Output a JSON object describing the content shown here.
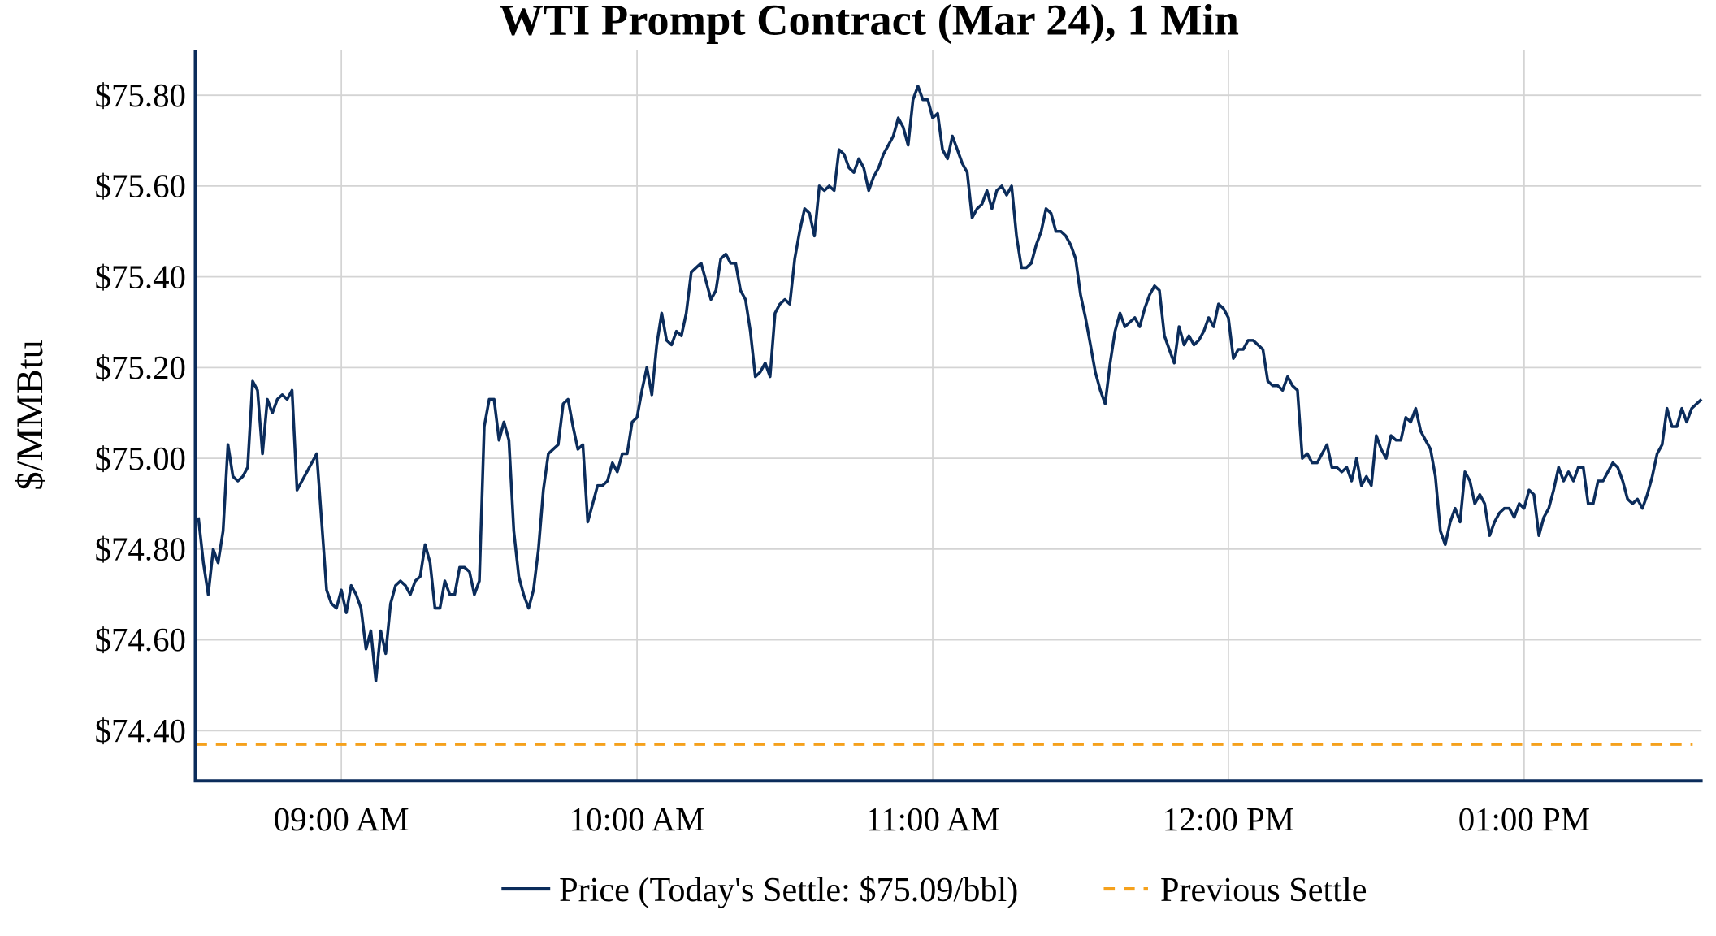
{
  "chart_data": {
    "type": "line",
    "title": "WTI Prompt Contract (Mar 24), 1 Min",
    "xlabel": "",
    "ylabel": "$/MMBtu",
    "x_units": "minutes relative to 09:00 AM",
    "xlim": [
      -29.5,
      276
    ],
    "ylim": [
      74.288,
      75.9
    ],
    "grid": true,
    "legend_placement": "bottom-center",
    "x_ticks": [
      {
        "value": 0,
        "label": "09:00 AM"
      },
      {
        "value": 60,
        "label": "10:00 AM"
      },
      {
        "value": 120,
        "label": "11:00 AM"
      },
      {
        "value": 180,
        "label": "12:00 PM"
      },
      {
        "value": 240,
        "label": "01:00 PM"
      }
    ],
    "y_ticks": [
      {
        "value": 74.4,
        "label": "$74.40"
      },
      {
        "value": 74.6,
        "label": "$74.60"
      },
      {
        "value": 74.8,
        "label": "$74.80"
      },
      {
        "value": 75.0,
        "label": "$75.00"
      },
      {
        "value": 75.2,
        "label": "$75.20"
      },
      {
        "value": 75.4,
        "label": "$75.40"
      },
      {
        "value": 75.6,
        "label": "$75.60"
      },
      {
        "value": 75.8,
        "label": "$75.80"
      }
    ],
    "series": [
      {
        "name": "Price (Today's Settle: $75.09/bbl)",
        "color": "#0b2c5b",
        "style": "solid",
        "segments": [
          {
            "x": [
              -29,
              -28,
              -27,
              -26,
              -25,
              -24,
              -23,
              -22,
              -21,
              -20,
              -19,
              -18,
              -17,
              -16,
              -15,
              -14,
              -13,
              -12,
              -11,
              -10,
              -9,
              -5,
              -3,
              -2,
              -1
            ],
            "y": [
              74.87,
              74.77,
              74.7,
              74.8,
              74.77,
              74.84,
              75.03,
              74.96,
              74.95,
              74.96,
              74.98,
              75.17,
              75.15,
              75.01,
              75.13,
              75.1,
              75.13,
              75.14,
              75.13,
              75.15,
              74.93,
              75.01,
              74.71,
              74.68,
              74.67
            ]
          },
          {
            "x_start": 0,
            "x_step": 1,
            "y": [
              74.71,
              74.66,
              74.72,
              74.7,
              74.67,
              74.58,
              74.62,
              74.51,
              74.62,
              74.57,
              74.68,
              74.72,
              74.73,
              74.72,
              74.7,
              74.73,
              74.74,
              74.81,
              74.77,
              74.67,
              74.67,
              74.73,
              74.7,
              74.7,
              74.76,
              74.76,
              74.75,
              74.7,
              74.73,
              75.07,
              75.13,
              75.13,
              75.04,
              75.08,
              75.04,
              74.84,
              74.74,
              74.7,
              74.67,
              74.71,
              74.8,
              74.93,
              75.01,
              75.02,
              75.03,
              75.12,
              75.13,
              75.07,
              75.02,
              75.03,
              74.86,
              74.9,
              74.94,
              74.94,
              74.95,
              74.99,
              74.97,
              75.01,
              75.01,
              75.08,
              75.09,
              75.15,
              75.2,
              75.14,
              75.25,
              75.32,
              75.26,
              75.25,
              75.28,
              75.27,
              75.32,
              75.41,
              75.42,
              75.43,
              75.39,
              75.35,
              75.37,
              75.44,
              75.45,
              75.43,
              75.43,
              75.37,
              75.35,
              75.28,
              75.18,
              75.19,
              75.21,
              75.18,
              75.32,
              75.34,
              75.35,
              75.34,
              75.44,
              75.5,
              75.55,
              75.54,
              75.49,
              75.6,
              75.59,
              75.6,
              75.59,
              75.68,
              75.67,
              75.64,
              75.63,
              75.66,
              75.64,
              75.59,
              75.62,
              75.64,
              75.67,
              75.69,
              75.71,
              75.75,
              75.73,
              75.69,
              75.79,
              75.82,
              75.79,
              75.79,
              75.75,
              75.76,
              75.68,
              75.66,
              75.71,
              75.68,
              75.65,
              75.63,
              75.53,
              75.55,
              75.56,
              75.59,
              75.55,
              75.59,
              75.6,
              75.58,
              75.6,
              75.49,
              75.42,
              75.42,
              75.43,
              75.47,
              75.5,
              75.55,
              75.54,
              75.5,
              75.5,
              75.49,
              75.47,
              75.44,
              75.36,
              75.31,
              75.25,
              75.19,
              75.15,
              75.12,
              75.21,
              75.28,
              75.32,
              75.29,
              75.3,
              75.31,
              75.29,
              75.33,
              75.36,
              75.38,
              75.37,
              75.27,
              75.24,
              75.21,
              75.29,
              75.25,
              75.27,
              75.25,
              75.26,
              75.28,
              75.31,
              75.29,
              75.34,
              75.33,
              75.31,
              75.22,
              75.24,
              75.24,
              75.26,
              75.26,
              75.25,
              75.24,
              75.17,
              75.16,
              75.16,
              75.15,
              75.18,
              75.16,
              75.15,
              75.0,
              75.01,
              74.99,
              74.99,
              75.01,
              75.03,
              74.98,
              74.98,
              74.97,
              74.98,
              74.95,
              75.0,
              74.94,
              74.96,
              74.94,
              75.05,
              75.02,
              75.0,
              75.05,
              75.04,
              75.04,
              75.09,
              75.08,
              75.11,
              75.06,
              75.04,
              75.02,
              74.96,
              74.84,
              74.81,
              74.86,
              74.89,
              74.86,
              74.97,
              74.95,
              74.9,
              74.92,
              74.9,
              74.83,
              74.86,
              74.88,
              74.89,
              74.89,
              74.87,
              74.9,
              74.89,
              74.93,
              74.92,
              74.83,
              74.87,
              74.89,
              74.93,
              74.98,
              74.95,
              74.97,
              74.95,
              74.98,
              74.98,
              74.9,
              74.9,
              74.95,
              74.95,
              74.97,
              74.99,
              74.98,
              74.95,
              74.91,
              74.9,
              74.91,
              74.89,
              74.92,
              74.96,
              75.01,
              75.03,
              75.11,
              75.07,
              75.07,
              75.11,
              75.08,
              75.11,
              75.12,
              75.13
            ]
          }
        ]
      },
      {
        "name": "Previous Settle",
        "color": "#f5a11c",
        "style": "dashed",
        "constant_y": 74.37
      }
    ]
  }
}
